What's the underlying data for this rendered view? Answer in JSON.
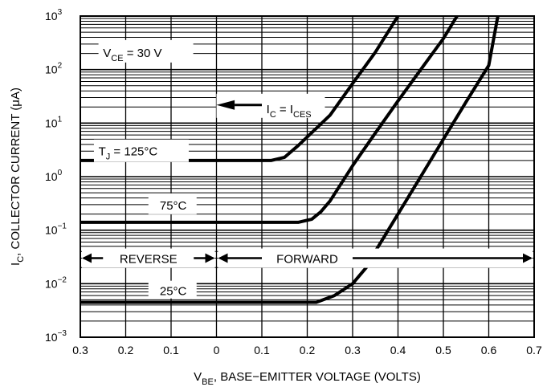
{
  "chart_data": {
    "type": "line",
    "x_scale": "linear",
    "y_scale": "log",
    "grid": true,
    "xlim": [
      -0.3,
      0.7
    ],
    "ylim": [
      0.001,
      1000
    ],
    "x_ticks": [
      "0.3",
      "0.2",
      "0.1",
      "0",
      "0.1",
      "0.2",
      "0.3",
      "0.4",
      "0.5",
      "0.6",
      "0.7"
    ],
    "y_ticks": [
      {
        "base": "10",
        "exp": "−3"
      },
      {
        "base": "10",
        "exp": "−2"
      },
      {
        "base": "10",
        "exp": "−1"
      },
      {
        "base": "10",
        "exp": "0"
      },
      {
        "base": "10",
        "exp": "1"
      },
      {
        "base": "10",
        "exp": "2"
      },
      {
        "base": "10",
        "exp": "3"
      }
    ],
    "xlabel": {
      "main": "V",
      "sub": "BE",
      "rest": ", BASE−EMITTER VOLTAGE (VOLTS)"
    },
    "ylabel": {
      "main": "I",
      "sub": "C",
      "rest": ", COLLECTOR CURRENT (μA)"
    },
    "series": [
      {
        "name": "125°C",
        "points": [
          [
            -0.3,
            2.0
          ],
          [
            0.12,
            2.0
          ],
          [
            0.15,
            2.3
          ],
          [
            0.18,
            3.8
          ],
          [
            0.2,
            5.5
          ],
          [
            0.25,
            14
          ],
          [
            0.3,
            55
          ],
          [
            0.35,
            210
          ],
          [
            0.4,
            1000
          ]
        ]
      },
      {
        "name": "75°C",
        "points": [
          [
            -0.3,
            0.14
          ],
          [
            0.18,
            0.14
          ],
          [
            0.21,
            0.16
          ],
          [
            0.23,
            0.22
          ],
          [
            0.25,
            0.35
          ],
          [
            0.3,
            1.6
          ],
          [
            0.35,
            6.5
          ],
          [
            0.4,
            26
          ],
          [
            0.45,
            100
          ],
          [
            0.5,
            380
          ],
          [
            0.53,
            1000
          ]
        ]
      },
      {
        "name": "25°C",
        "points": [
          [
            -0.3,
            0.0045
          ],
          [
            0.22,
            0.0045
          ],
          [
            0.26,
            0.006
          ],
          [
            0.3,
            0.01
          ],
          [
            0.33,
            0.02
          ],
          [
            0.35,
            0.04
          ],
          [
            0.4,
            0.2
          ],
          [
            0.45,
            1.0
          ],
          [
            0.5,
            5
          ],
          [
            0.55,
            25
          ],
          [
            0.6,
            120
          ],
          [
            0.62,
            1000
          ]
        ]
      }
    ],
    "annotations": {
      "vce": {
        "main": "V",
        "sub": "CE",
        "rest": " = 30 V"
      },
      "ic": {
        "a": "I",
        "a_sub": "C",
        "mid": " = I",
        "b_sub": "CES"
      },
      "tj": {
        "main": "T",
        "sub": "J",
        "rest": " = 125°C"
      },
      "t75": "75°C",
      "t25": "25°C",
      "reverse": "REVERSE",
      "forward": "FORWARD"
    }
  }
}
